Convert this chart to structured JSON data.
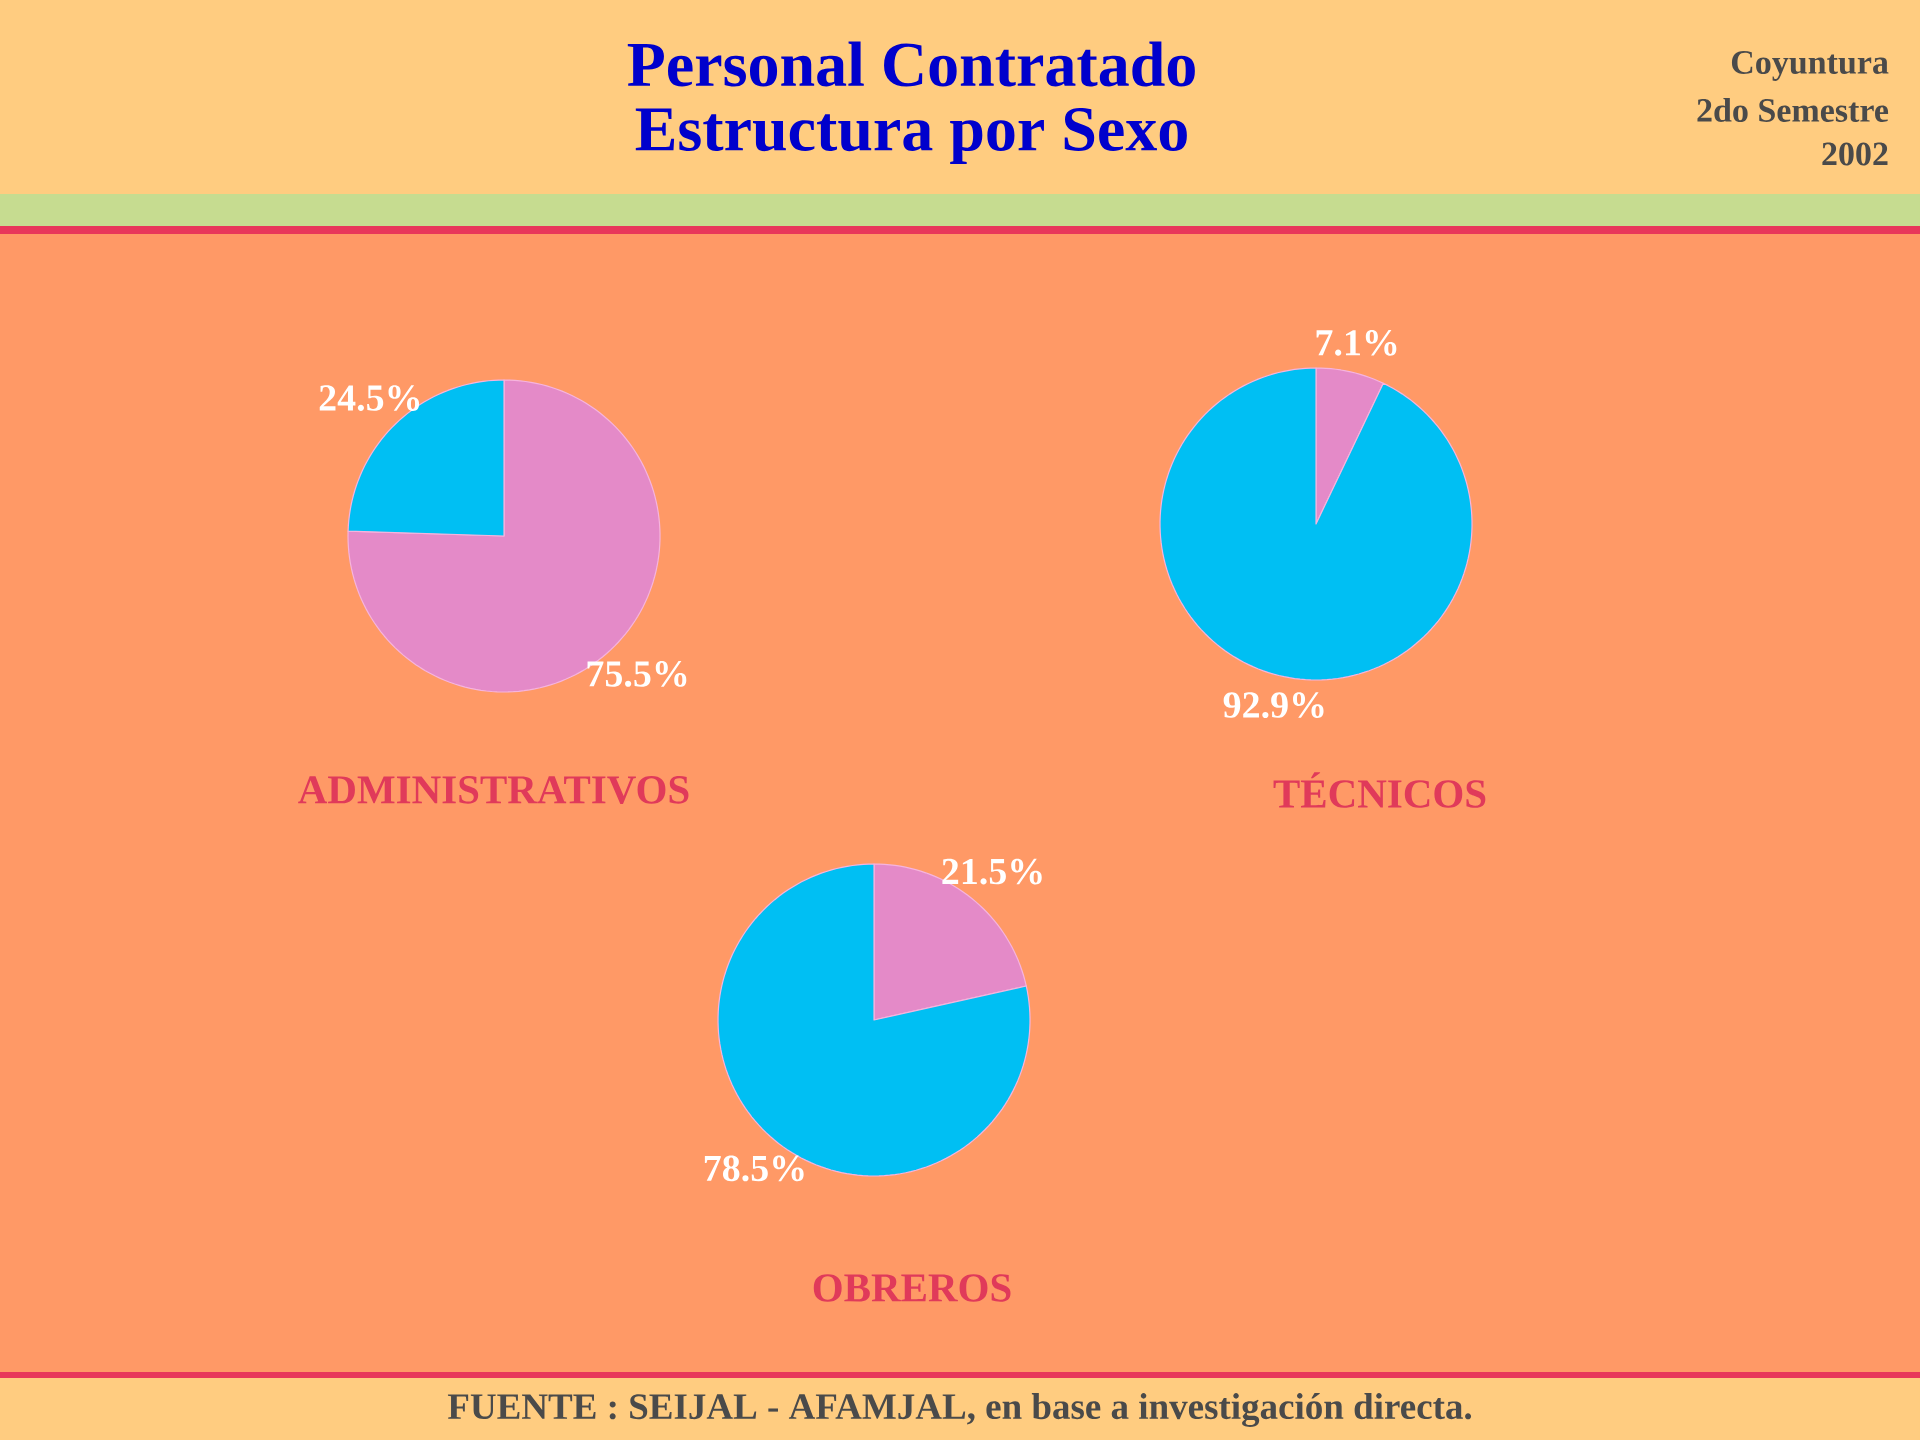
{
  "chart_data": [
    {
      "type": "pie",
      "title": "Personal Contratado",
      "subtitle": "Estructura por Sexo",
      "xlabel": "ADMINISTRATIVOS",
      "categories": [
        null,
        null
      ],
      "values": [
        75.5,
        24.5
      ],
      "colors": [
        "#e48ac8",
        "#00bff3"
      ],
      "value_labels": [
        "75.5%",
        "24.5%"
      ],
      "annotations": [
        "Coyuntura",
        "2do Semestre",
        "2002"
      ]
    },
    {
      "type": "pie",
      "xlabel": "TÉCNICOS",
      "categories": [
        null,
        null
      ],
      "values": [
        7.1,
        92.9
      ],
      "colors": [
        "#e48ac8",
        "#00bff3"
      ],
      "value_labels": [
        "7.1%",
        "92.9%"
      ]
    },
    {
      "type": "pie",
      "xlabel": "OBREROS",
      "categories": [
        null,
        null
      ],
      "values": [
        21.5,
        78.5
      ],
      "colors": [
        "#e48ac8",
        "#00bff3"
      ],
      "value_labels": [
        "21.5%",
        "78.5%"
      ],
      "annotations": [
        "FUENTE :  SEIJAL - AFAMJAL,  en base a investigación directa."
      ]
    }
  ]
}
